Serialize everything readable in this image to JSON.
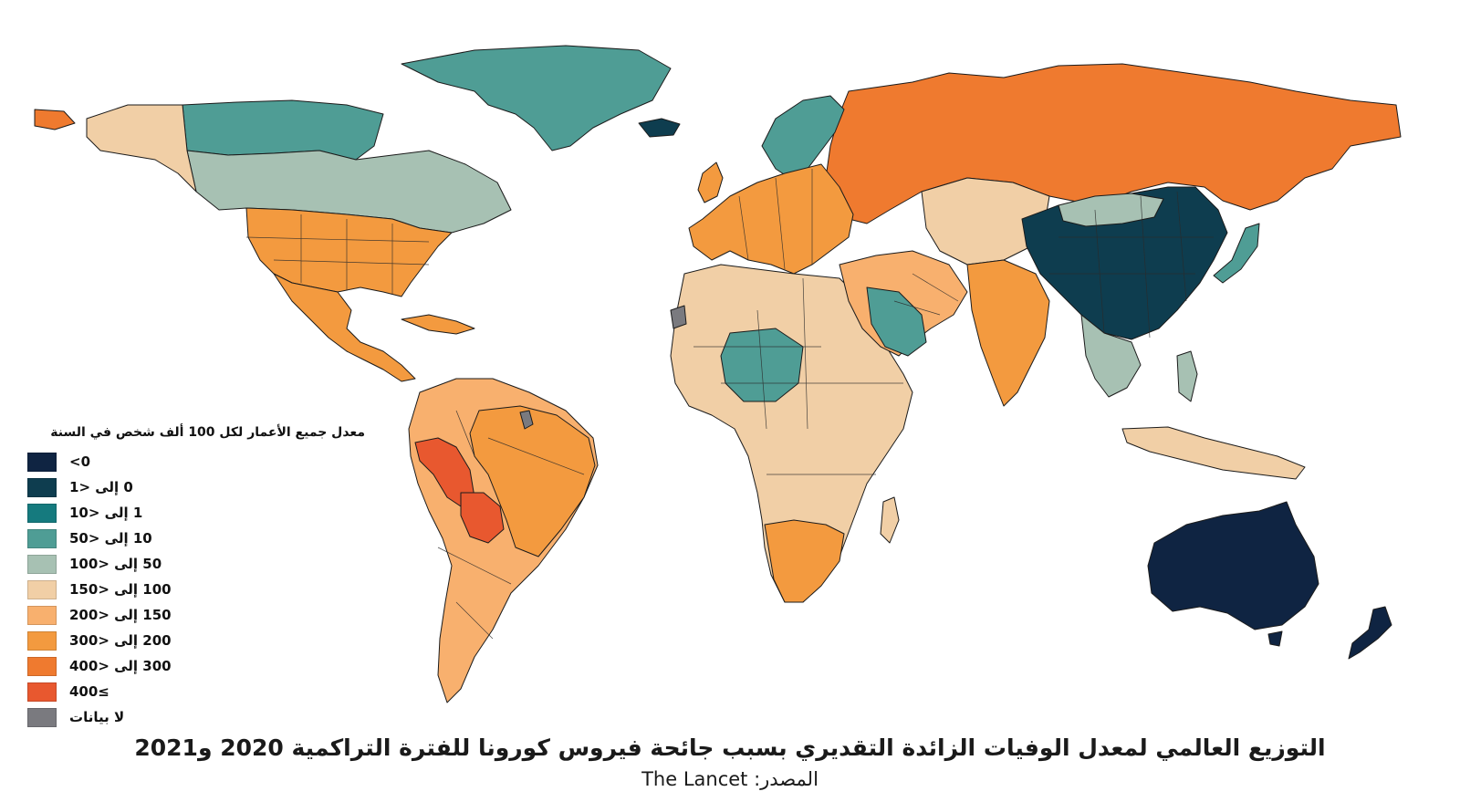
{
  "map": {
    "legend_title": "معدل جميع الأعمار لكل 100 ألف شخص في السنة",
    "legend": [
      {
        "label": "<0",
        "color": "#0f2442"
      },
      {
        "label": "0 إلى <1",
        "color": "#0e3d4f"
      },
      {
        "label": "1 إلى <10",
        "color": "#157a7e"
      },
      {
        "label": "10 إلى <50",
        "color": "#4f9d95"
      },
      {
        "label": "50 إلى <100",
        "color": "#a7c1b3"
      },
      {
        "label": "100 إلى <150",
        "color": "#f1cfa6"
      },
      {
        "label": "150 إلى <200",
        "color": "#f8b06e"
      },
      {
        "label": "200 إلى <300",
        "color": "#f39a3f"
      },
      {
        "label": "300 إلى <400",
        "color": "#ef7a2f"
      },
      {
        "label": "400≤",
        "color": "#e8582f"
      },
      {
        "label": "لا بيانات",
        "color": "#7a7a7f"
      }
    ],
    "title": "التوزيع العالمي لمعدل الوفيات الزائدة التقديري بسبب جائحة فيروس كورونا للفترة التراكمية 2020 و2021",
    "source": "المصدر: The Lancet",
    "regions": [
      {
        "name": "russia",
        "category": "300 إلى <400"
      },
      {
        "name": "china",
        "category": "0 إلى <1"
      },
      {
        "name": "australia",
        "category": "<0"
      },
      {
        "name": "new-zealand",
        "category": "<0"
      },
      {
        "name": "iceland",
        "category": "0 إلى <1"
      },
      {
        "name": "greenland",
        "category": "10 إلى <50"
      },
      {
        "name": "canada-north",
        "category": "10 إلى <50"
      },
      {
        "name": "canada-south",
        "category": "50 إلى <100"
      },
      {
        "name": "alaska",
        "category": "100 إلى <150"
      },
      {
        "name": "usa",
        "category": "200 إلى <300"
      },
      {
        "name": "mexico",
        "category": "200 إلى <300"
      },
      {
        "name": "peru",
        "category": "400≤"
      },
      {
        "name": "bolivia",
        "category": "400≤"
      },
      {
        "name": "brazil",
        "category": "200 إلى <300"
      },
      {
        "name": "guiana",
        "category": "لا بيانات"
      },
      {
        "name": "western-sahara",
        "category": "لا بيانات"
      },
      {
        "name": "saudi-arabia",
        "category": "10 إلى <50"
      },
      {
        "name": "japan",
        "category": "10 إلى <50"
      },
      {
        "name": "south-africa",
        "category": "200 إلى <300"
      },
      {
        "name": "india",
        "category": "200 إلى <300"
      }
    ]
  }
}
